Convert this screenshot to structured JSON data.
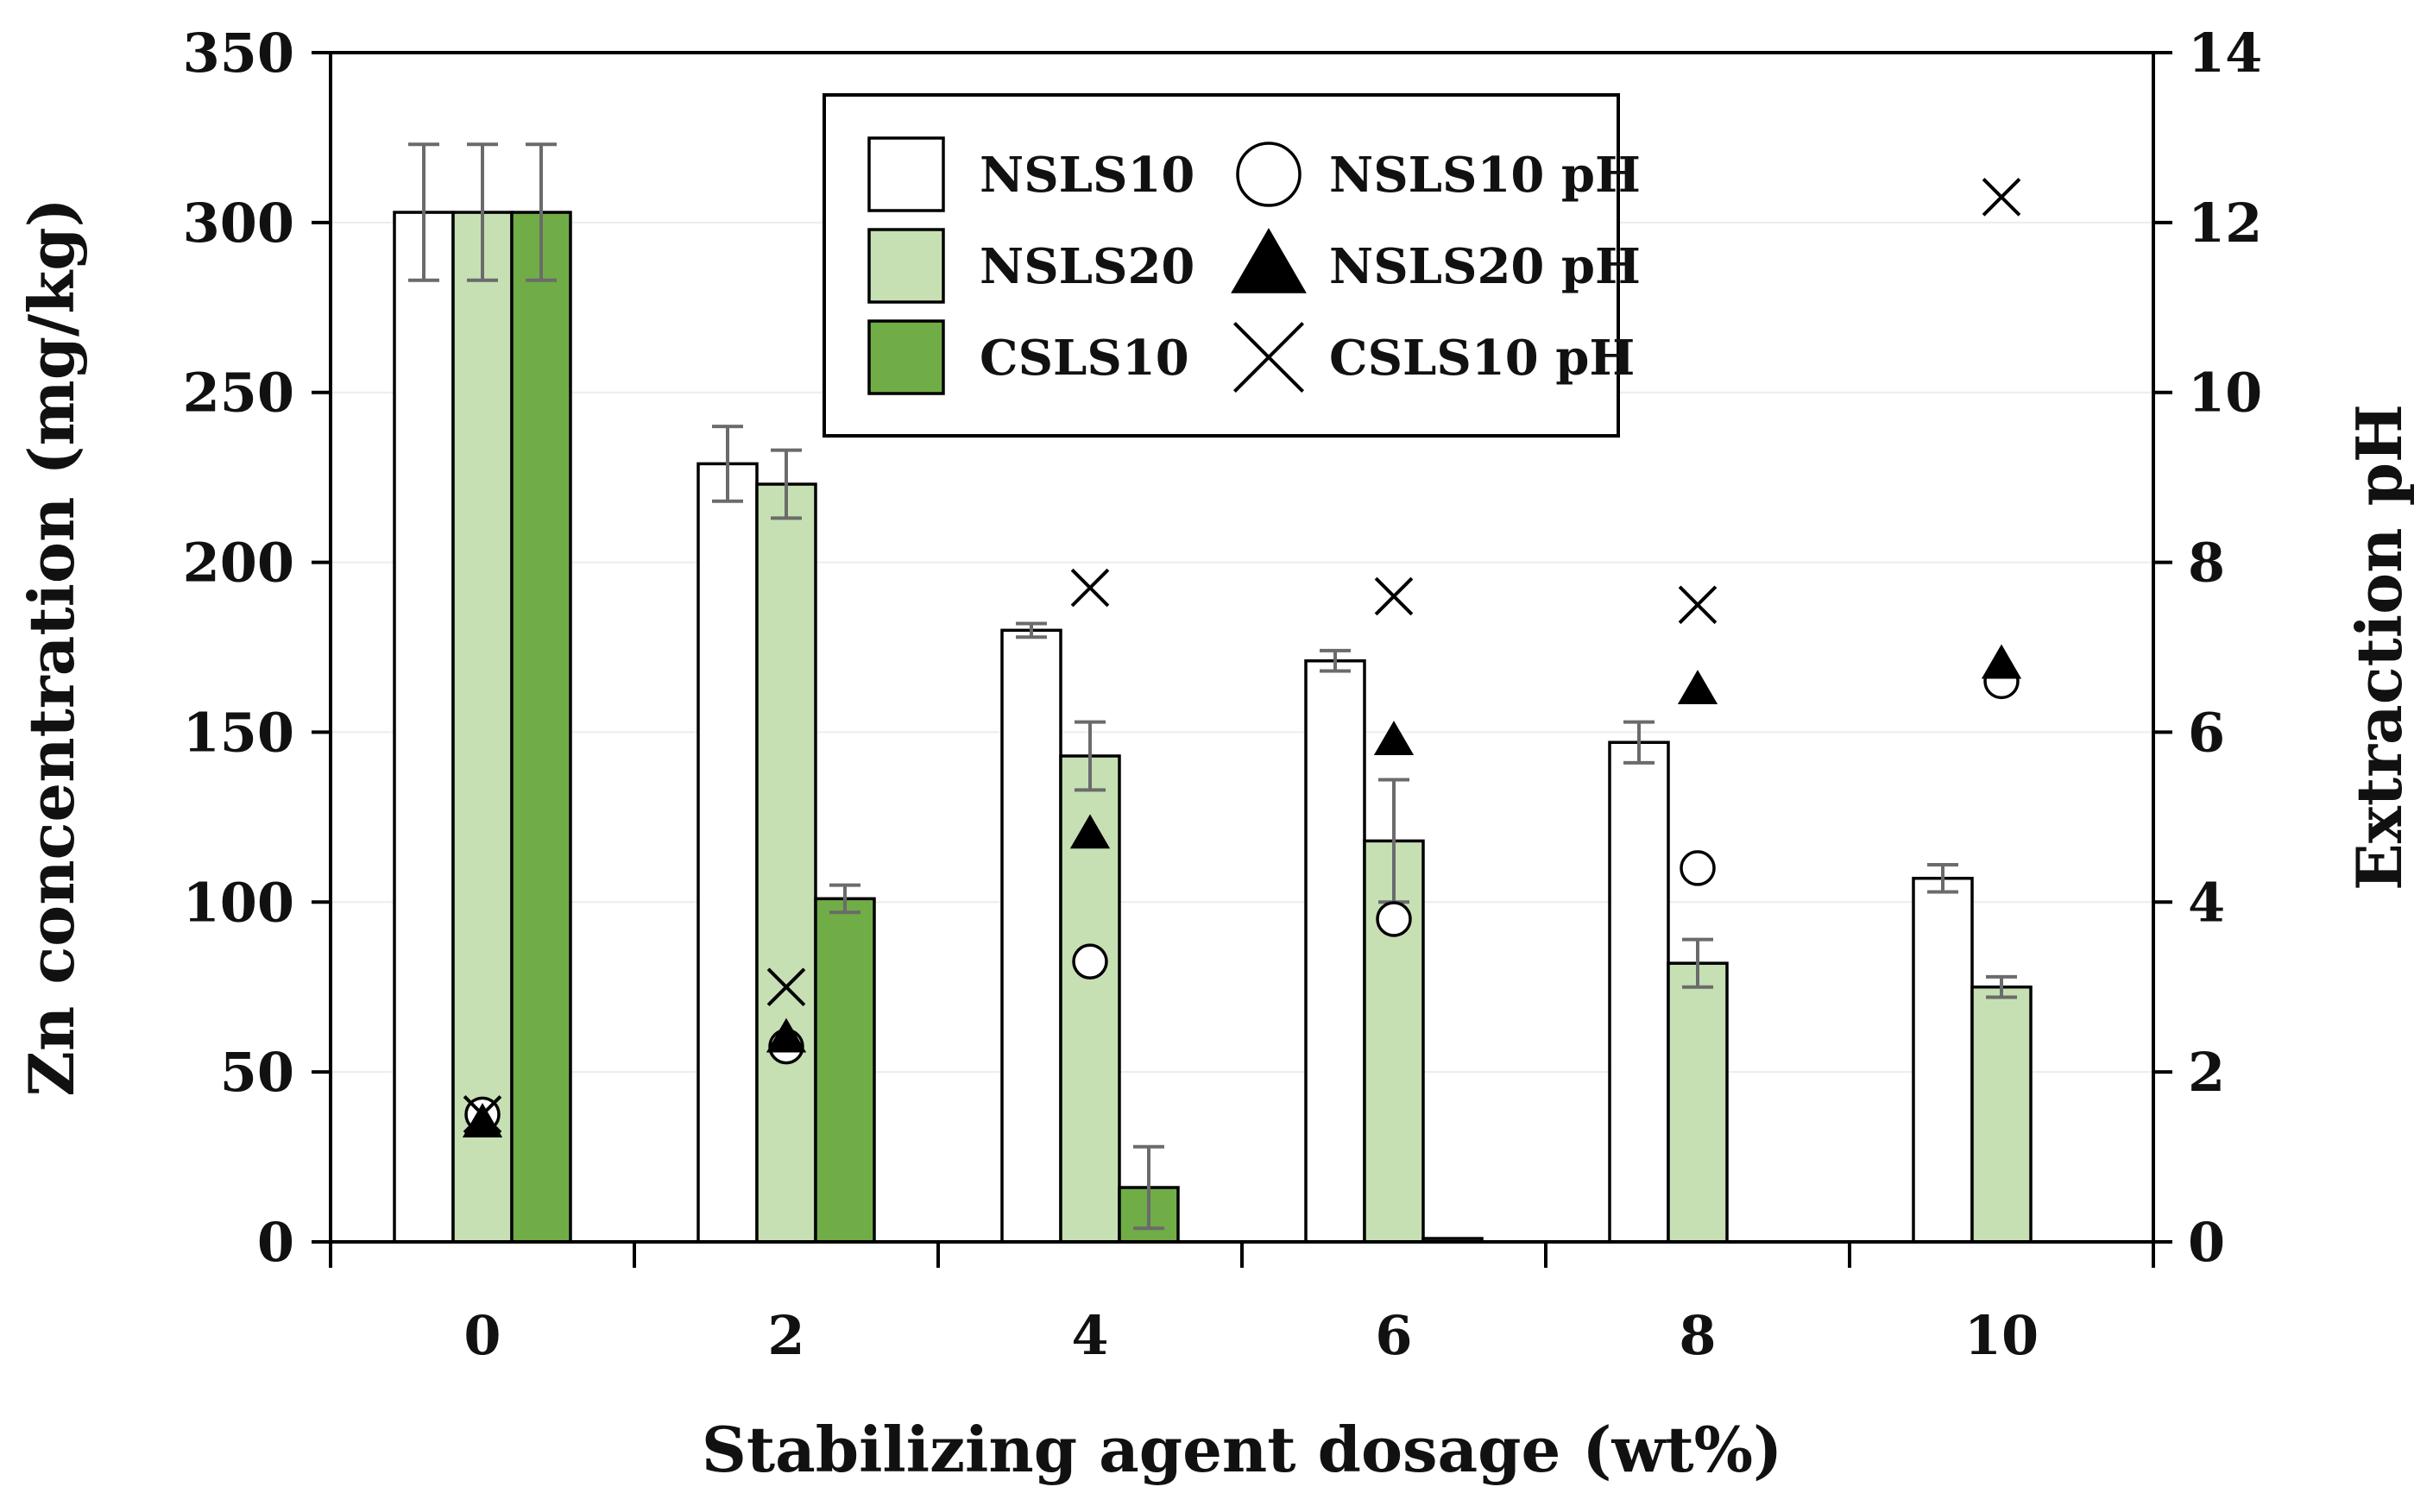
{
  "chart_data": {
    "type": "bar",
    "xlabel": "Stabilizing agent dosage (wt%)",
    "ylabel": "Zn concentration (mg/kg)",
    "y2label": "Extraction pH",
    "ylim": [
      0,
      350
    ],
    "y2lim": [
      0,
      14
    ],
    "yticks": [
      0,
      50,
      100,
      150,
      200,
      250,
      300,
      350
    ],
    "y2ticks": [
      0,
      2,
      4,
      6,
      8,
      10,
      12,
      14
    ],
    "categories": [
      "0",
      "2",
      "4",
      "6",
      "8",
      "10"
    ],
    "series": [
      {
        "name": "NSLS10",
        "color": "#ffffff",
        "values": [
          303,
          229,
          180,
          171,
          147,
          107
        ],
        "errors": [
          20,
          11,
          2,
          3,
          6,
          4
        ]
      },
      {
        "name": "NSLS20",
        "color": "#c6e0b4",
        "values": [
          303,
          223,
          143,
          118,
          82,
          75
        ],
        "errors": [
          20,
          10,
          10,
          18,
          7,
          3
        ]
      },
      {
        "name": "CSLS10",
        "color": "#70ad47",
        "values": [
          303,
          101,
          16,
          1,
          null,
          null
        ],
        "errors": [
          20,
          4,
          12,
          0,
          null,
          null
        ]
      }
    ],
    "ph_series": [
      {
        "name": "NSLS10 pH",
        "marker": "circle",
        "values": [
          1.5,
          2.3,
          3.3,
          3.8,
          4.4,
          6.6
        ]
      },
      {
        "name": "NSLS20 pH",
        "marker": "triangle",
        "values": [
          1.4,
          2.4,
          4.8,
          5.9,
          6.5,
          6.8
        ]
      },
      {
        "name": "CSLS10 pH",
        "marker": "cross",
        "values": [
          1.5,
          3.0,
          7.7,
          7.6,
          7.5,
          12.3
        ]
      }
    ],
    "legend": "top-center"
  }
}
